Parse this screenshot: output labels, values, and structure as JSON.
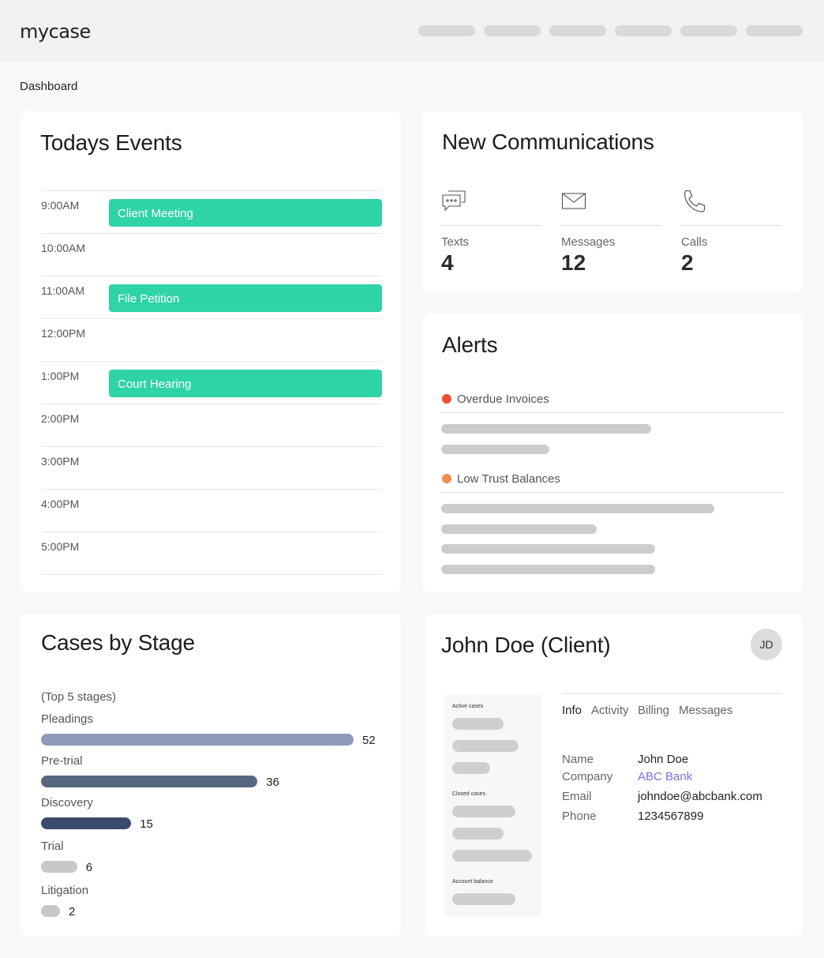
{
  "app": {
    "logo": "mycase"
  },
  "breadcrumb": "Dashboard",
  "events": {
    "title": "Todays Events",
    "rows": [
      {
        "time": "9:00AM",
        "event": "Client Meeting"
      },
      {
        "time": "10:00AM",
        "event": ""
      },
      {
        "time": "11:00AM",
        "event": "File Petition"
      },
      {
        "time": "12:00PM",
        "event": ""
      },
      {
        "time": "1:00PM",
        "event": "Court Hearing"
      },
      {
        "time": "2:00PM",
        "event": ""
      },
      {
        "time": "3:00PM",
        "event": ""
      },
      {
        "time": "4:00PM",
        "event": ""
      },
      {
        "time": "5:00PM",
        "event": ""
      }
    ]
  },
  "communications": {
    "title": "New Communications",
    "items": [
      {
        "label": "Texts",
        "count": "4",
        "icon": "chat-bubbles-icon"
      },
      {
        "label": "Messages",
        "count": "12",
        "icon": "envelope-icon"
      },
      {
        "label": "Calls",
        "count": "2",
        "icon": "phone-icon"
      }
    ]
  },
  "alerts": {
    "title": "Alerts",
    "groups": [
      {
        "label": "Overdue Invoices",
        "color": "#f04e30"
      },
      {
        "label": "Low Trust Balances",
        "color": "#f58c4b"
      }
    ]
  },
  "cases": {
    "title": "Cases by Stage",
    "subtitle": "(Top 5 stages)",
    "colors": [
      "#8e98b8",
      "#586780",
      "#3a4a6c",
      "#c8c8c8",
      "#c8c8c8"
    ]
  },
  "chart_data": {
    "type": "bar",
    "title": "Cases by Stage",
    "subtitle": "(Top 5 stages)",
    "categories": [
      "Pleadings",
      "Pre-trial",
      "Discovery",
      "Trial",
      "Litigation"
    ],
    "values": [
      52,
      36,
      15,
      6,
      2
    ],
    "orientation": "horizontal"
  },
  "client": {
    "title": "John Doe (Client)",
    "initials": "JD",
    "panel": {
      "active_label": "Active cases",
      "closed_label": "Closed cases",
      "balance_label": "Account balance"
    },
    "tabs": [
      "Info",
      "Activity",
      "Billing",
      "Messages"
    ],
    "info": {
      "name_label": "Name",
      "name": "John Doe",
      "company_label": "Company",
      "company": "ABC Bank",
      "email_label": "Email",
      "email": "johndoe@abcbank.com",
      "phone_label": "Phone",
      "phone": "1234567899"
    }
  }
}
